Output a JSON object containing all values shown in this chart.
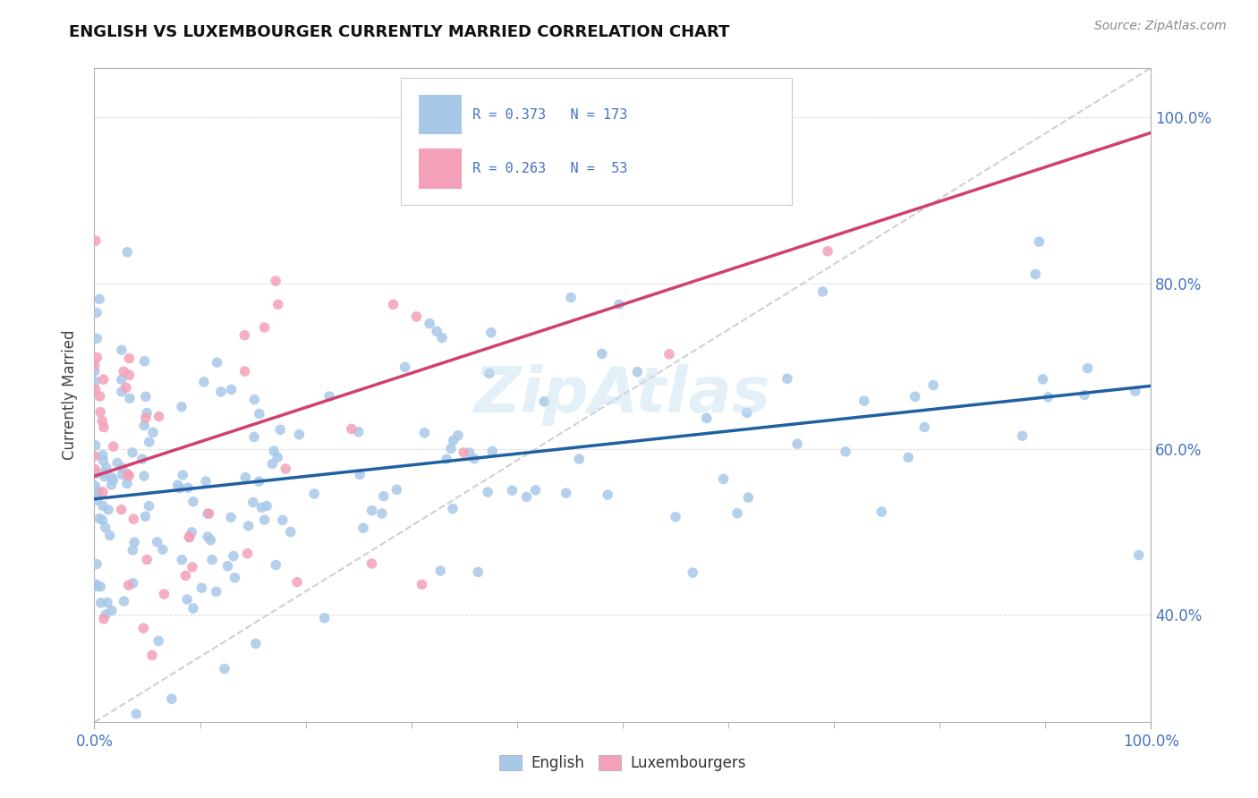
{
  "title": "ENGLISH VS LUXEMBOURGER CURRENTLY MARRIED CORRELATION CHART",
  "source": "Source: ZipAtlas.com",
  "ylabel": "Currently Married",
  "english_R": 0.373,
  "english_N": 173,
  "luxembourger_R": 0.263,
  "luxembourger_N": 53,
  "english_color": "#a8c8e8",
  "luxembourger_color": "#f4a0b8",
  "english_line_color": "#2060a0",
  "luxembourger_line_color": "#d04070",
  "diag_line_color": "#c8c8c8",
  "watermark": "ZipAtlas",
  "stat_color_blue": "#4472c4",
  "stat_color_pink": "#e06080",
  "background_color": "#ffffff",
  "xlim": [
    0.0,
    1.0
  ],
  "ylim": [
    0.27,
    1.06
  ],
  "yticks": [
    0.4,
    0.6,
    0.8,
    1.0
  ]
}
